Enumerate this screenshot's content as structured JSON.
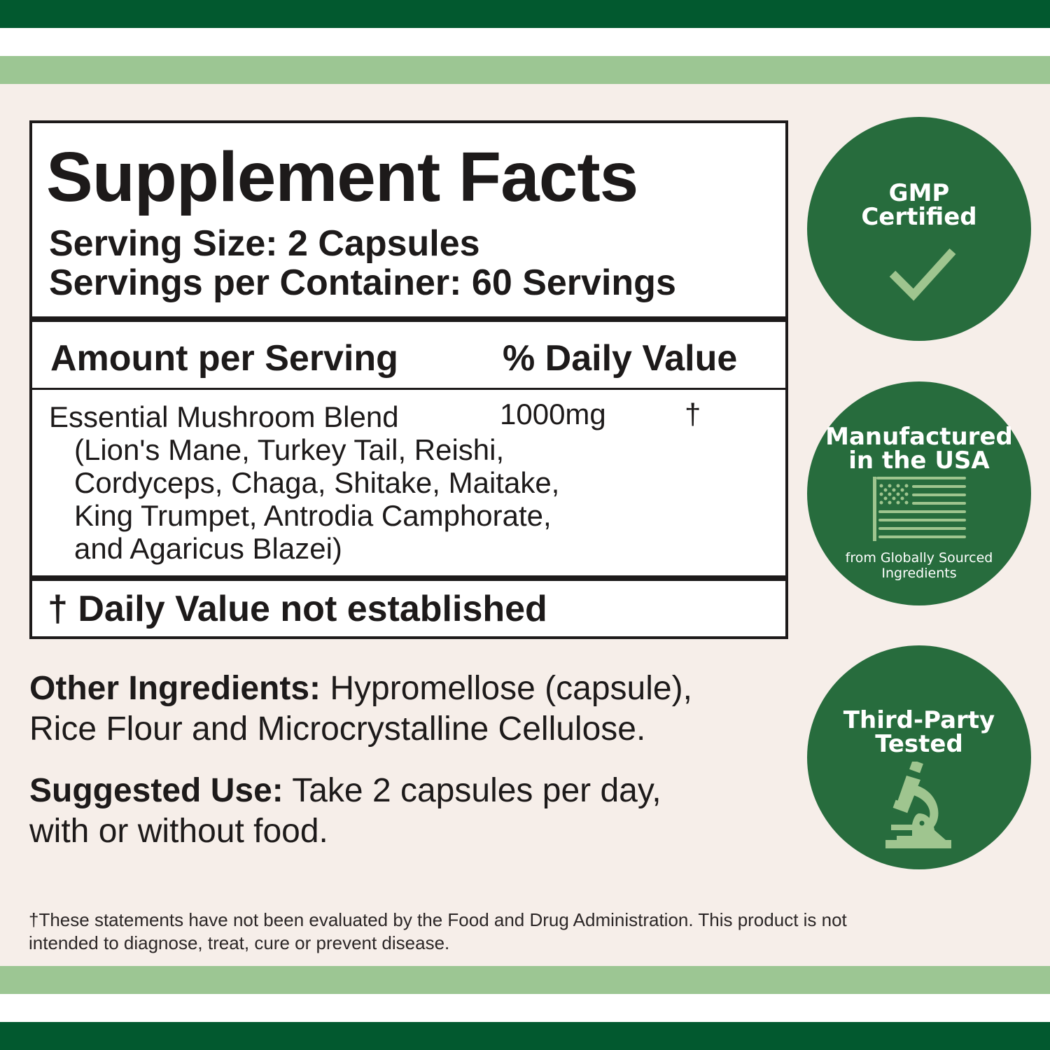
{
  "colors": {
    "dark_green": "#02592f",
    "light_green": "#9cc693",
    "background": "#f6eee9",
    "badge_green": "#276c3d",
    "icon_green": "#9fc58f"
  },
  "facts": {
    "title": "Supplement Facts",
    "serving_size": "Serving Size: 2 Capsules",
    "servings_per_container": "Servings per Container: 60 Servings",
    "amount_header": "Amount per Serving",
    "dv_header": "% Daily Value",
    "ingredient": {
      "name": "Essential Mushroom Blend",
      "amount": "1000mg",
      "dv": "†",
      "details": [
        "(Lion's Mane, Turkey Tail, Reishi,",
        "Cordyceps, Chaga, Shitake, Maitake,",
        "King Trumpet, Antrodia Camphorate,",
        "and Agaricus Blazei)"
      ]
    },
    "footnote": "† Daily Value not established"
  },
  "other_ingredients": {
    "label": "Other Ingredients:",
    "line1": " Hypromellose (capsule),",
    "line2": "Rice Flour and Microcrystalline Cellulose."
  },
  "suggested_use": {
    "label": "Suggested Use:",
    "line1": " Take 2 capsules per day,",
    "line2": "with or without food."
  },
  "disclaimer": {
    "line1": "†These statements have not been evaluated by the Food and Drug Administration. This product is not",
    "line2": "intended to diagnose, treat, cure or prevent disease."
  },
  "badges": [
    {
      "line1": "GMP",
      "line2": "Certified",
      "icon": "checkmark-icon"
    },
    {
      "line1": "Manufactured",
      "line2": "in the USA",
      "icon": "us-flag-icon",
      "sub1": "from Globally Sourced",
      "sub2": "Ingredients"
    },
    {
      "line1": "Third-Party",
      "line2": "Tested",
      "icon": "microscope-icon"
    }
  ]
}
